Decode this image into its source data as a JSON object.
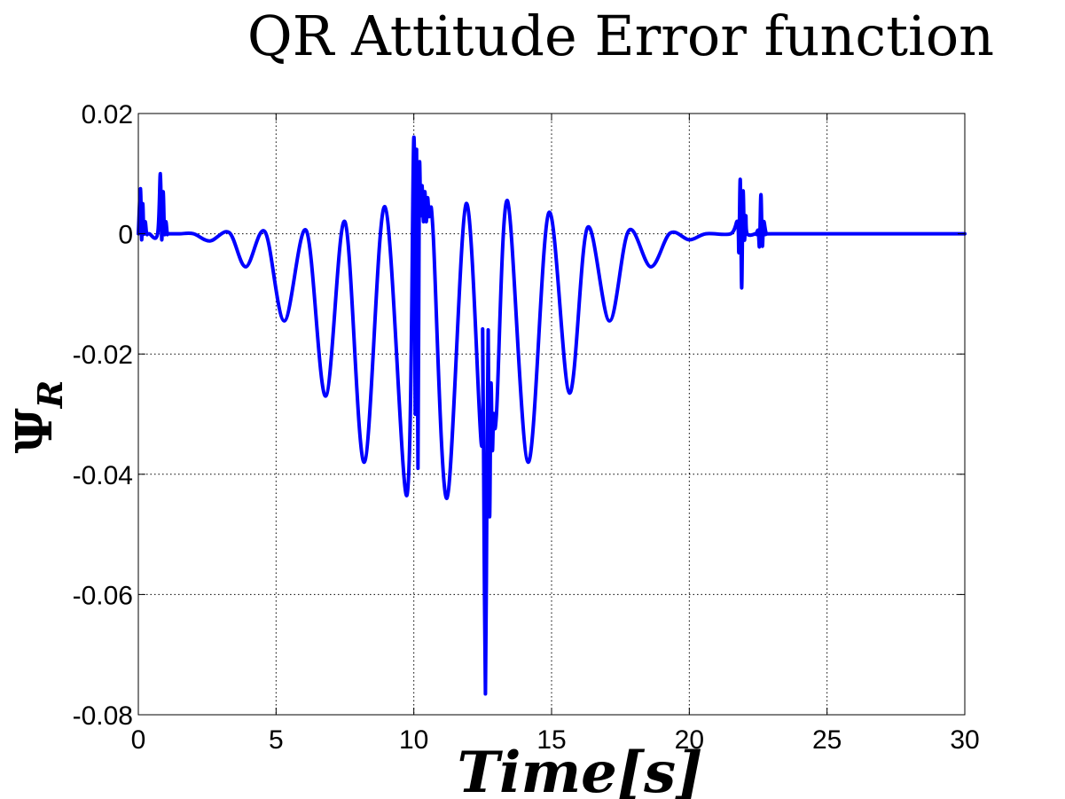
{
  "chart_data": {
    "type": "line",
    "title": "QR Attitude Error function",
    "xlabel": "Time[s]",
    "ylabel": "Ψ",
    "ylabel_subscript": "R",
    "xlim": [
      0,
      30
    ],
    "ylim": [
      -0.08,
      0.02
    ],
    "xticks": [
      0,
      5,
      10,
      15,
      20,
      25,
      30
    ],
    "xtick_labels": [
      "0",
      "5",
      "10",
      "15",
      "20",
      "25",
      "30"
    ],
    "yticks": [
      0.02,
      0,
      -0.02,
      -0.04,
      -0.06,
      -0.08
    ],
    "ytick_labels": [
      "0.02",
      "0",
      "-0.02",
      "-0.04",
      "-0.06",
      "-0.08"
    ],
    "grid": true,
    "series": [
      {
        "color": "#0000ff",
        "x": [
          0,
          0.08,
          0.12,
          0.16,
          0.2,
          0.25,
          0.3,
          0.35,
          0.4,
          0.7,
          0.8,
          0.85,
          0.9,
          0.95,
          1.0,
          1.05,
          1.1,
          1.5,
          2.0,
          2.6,
          3.3,
          3.9,
          4.6,
          5.3,
          6.1,
          6.8,
          7.5,
          8.2,
          8.95,
          9.75,
          10.0,
          10.05,
          10.1,
          10.15,
          10.2,
          10.25,
          10.3,
          10.35,
          10.4,
          10.45,
          10.5,
          10.55,
          10.6,
          10.7,
          11.2,
          11.9,
          12.45,
          12.5,
          12.55,
          12.6,
          12.65,
          12.7,
          12.75,
          12.8,
          12.85,
          12.9,
          13.0,
          13.4,
          14.15,
          14.9,
          15.65,
          16.3,
          17.1,
          17.8,
          18.6,
          19.3,
          20.0,
          20.6,
          21.5,
          21.75,
          21.8,
          21.85,
          21.9,
          21.95,
          22.0,
          22.05,
          22.1,
          22.4,
          22.5,
          22.55,
          22.6,
          22.65,
          22.7,
          22.8,
          23.0,
          30.0
        ],
        "y": [
          0,
          0.0075,
          -0.001,
          0.005,
          0,
          0.002,
          0,
          0,
          0,
          0,
          0.01,
          -0.001,
          0.007,
          0,
          0.002,
          0,
          0,
          0,
          0,
          -0.0012,
          0.0002,
          -0.0055,
          0.0003,
          -0.0145,
          0.0005,
          -0.027,
          0.002,
          -0.038,
          0.0045,
          -0.0435,
          0.016,
          -0.03,
          0.014,
          -0.039,
          0.01,
          0.003,
          0.008,
          0.002,
          0.007,
          0.002,
          0.006,
          0.003,
          0.003,
          0.0002,
          -0.044,
          0.005,
          -0.035,
          -0.016,
          -0.05,
          -0.0765,
          -0.045,
          -0.016,
          -0.047,
          -0.025,
          -0.036,
          -0.03,
          -0.03,
          0.0055,
          -0.038,
          0.0035,
          -0.0265,
          0.001,
          -0.0145,
          0.0005,
          -0.0055,
          0.0001,
          -0.001,
          0,
          0,
          0.002,
          -0.003,
          0.009,
          -0.009,
          0.007,
          -0.001,
          0.003,
          0,
          0,
          0.0005,
          -0.002,
          0.0065,
          -0.002,
          0.002,
          0,
          0,
          0
        ]
      }
    ]
  }
}
